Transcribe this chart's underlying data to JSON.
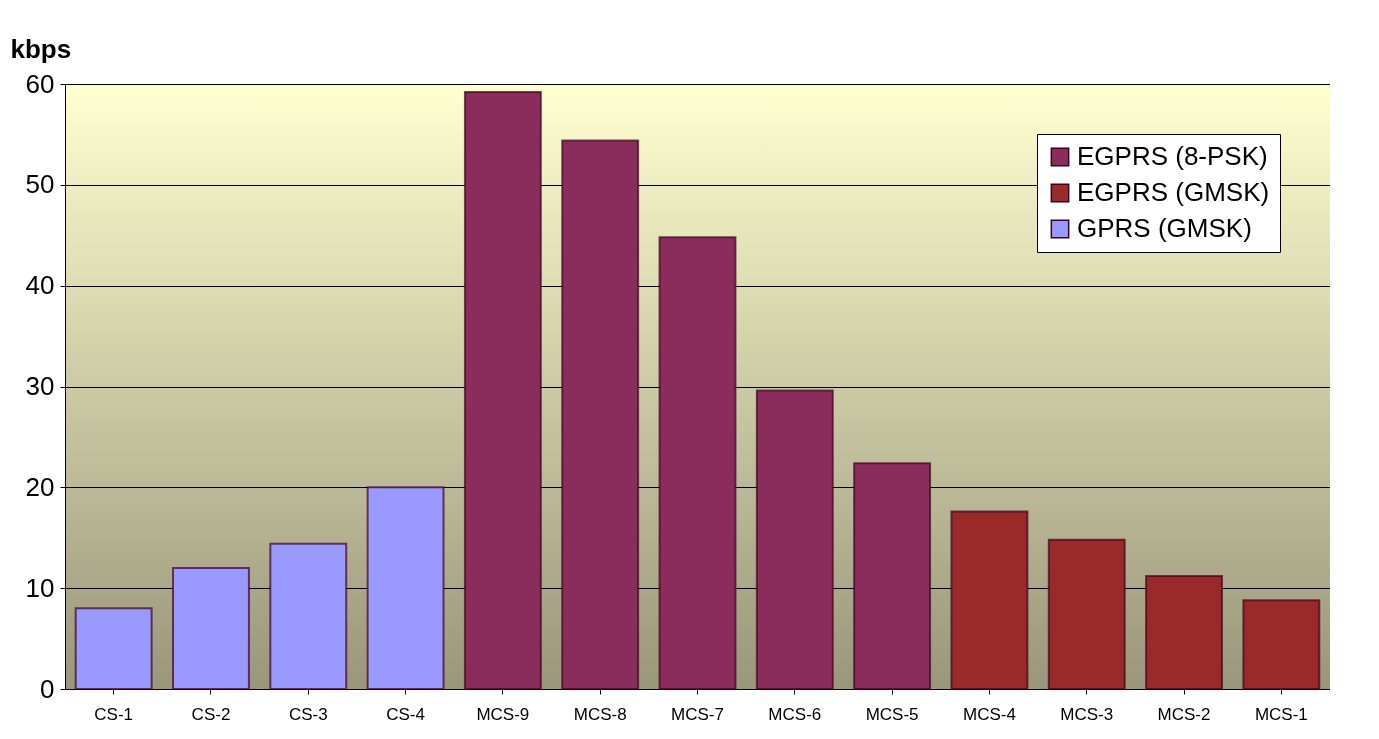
{
  "chart_data": {
    "type": "bar",
    "ylabel": "kbps",
    "categories": [
      "CS-1",
      "CS-2",
      "CS-3",
      "CS-4",
      "MCS-9",
      "MCS-8",
      "MCS-7",
      "MCS-6",
      "MCS-5",
      "MCS-4",
      "MCS-3",
      "MCS-2",
      "MCS-1"
    ],
    "series": [
      {
        "name": "EGPRS (8-PSK)",
        "color": "#8b2d5c",
        "values": [
          null,
          null,
          null,
          null,
          59.2,
          54.4,
          44.8,
          29.6,
          22.4,
          null,
          null,
          null,
          null
        ]
      },
      {
        "name": "EGPRS (GMSK)",
        "color": "#9a2a2a",
        "values": [
          null,
          null,
          null,
          null,
          null,
          null,
          null,
          null,
          null,
          17.6,
          14.8,
          11.2,
          8.8
        ]
      },
      {
        "name": "GPRS (GMSK)",
        "color": "#9999ff",
        "values": [
          8.0,
          12.0,
          14.4,
          20.0,
          null,
          null,
          null,
          null,
          null,
          null,
          null,
          null,
          null
        ]
      }
    ],
    "ylim": [
      0,
      60
    ],
    "yticks": [
      0,
      10,
      20,
      30,
      40,
      50,
      60
    ],
    "grid": "y",
    "legend": "top right"
  }
}
